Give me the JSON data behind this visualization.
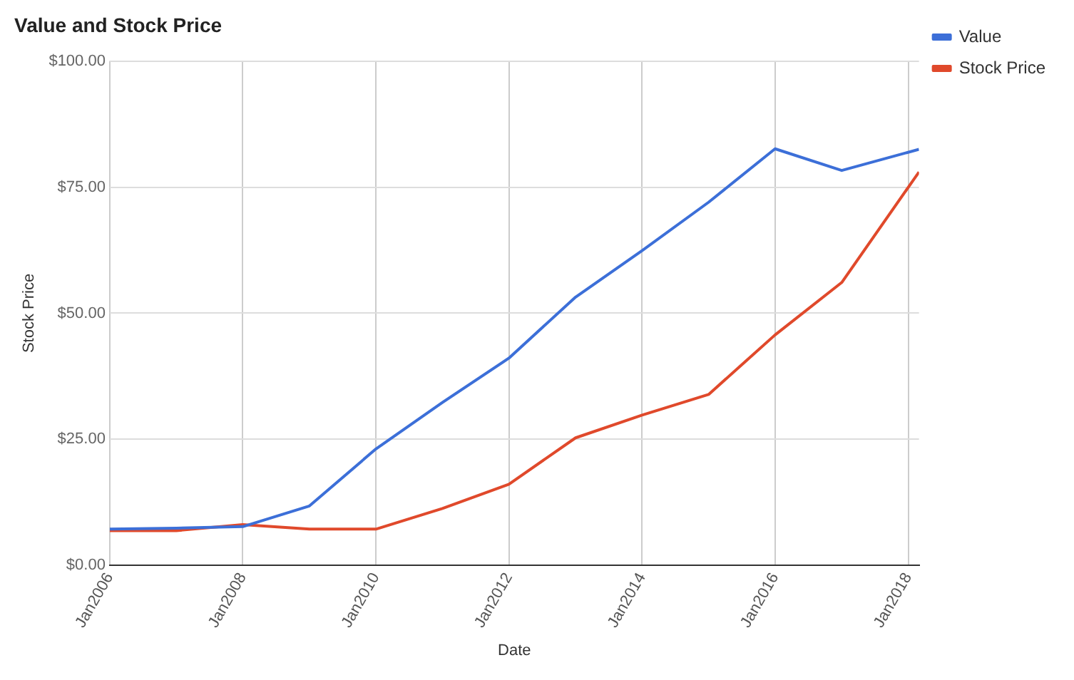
{
  "chart_data": {
    "type": "line",
    "title": "Value and Stock Price",
    "xlabel": "Date",
    "ylabel": "Stock Price",
    "x": [
      "2006-01",
      "2007-01",
      "2008-01",
      "2009-01",
      "2010-01",
      "2011-01",
      "2012-01",
      "2013-01",
      "2014-01",
      "2015-01",
      "2016-01",
      "2017-01",
      "2018-03"
    ],
    "series": [
      {
        "name": "Value",
        "color": "#3c6fd8",
        "values": [
          7.2,
          7.4,
          7.7,
          11.8,
          23.1,
          32.3,
          41.1,
          53.2,
          62.4,
          72,
          82.6,
          78.3,
          82.5
        ]
      },
      {
        "name": "Stock Price",
        "color": "#e0492b",
        "values": [
          6.9,
          6.9,
          8.1,
          7.2,
          7.2,
          11.3,
          16.1,
          25.3,
          29.8,
          33.9,
          45.7,
          56.1,
          78
        ]
      }
    ],
    "xlim": [
      "2006-01",
      "2018-03"
    ],
    "xticks": [
      {
        "value": "2006-01",
        "label": "Jan2006"
      },
      {
        "value": "2008-01",
        "label": "Jan2008"
      },
      {
        "value": "2010-01",
        "label": "Jan2010"
      },
      {
        "value": "2012-01",
        "label": "Jan2012"
      },
      {
        "value": "2014-01",
        "label": "Jan2014"
      },
      {
        "value": "2016-01",
        "label": "Jan2016"
      },
      {
        "value": "2018-01",
        "label": "Jan2018"
      }
    ],
    "ylim": [
      0,
      100
    ],
    "yticks": [
      {
        "value": 0,
        "label": "$0.00"
      },
      {
        "value": 25,
        "label": "$25.00"
      },
      {
        "value": 50,
        "label": "$50.00"
      },
      {
        "value": 75,
        "label": "$75.00"
      },
      {
        "value": 100,
        "label": "$100.00"
      }
    ],
    "grid": true,
    "legend": "top right",
    "marker": "none",
    "line_style": "solid"
  }
}
